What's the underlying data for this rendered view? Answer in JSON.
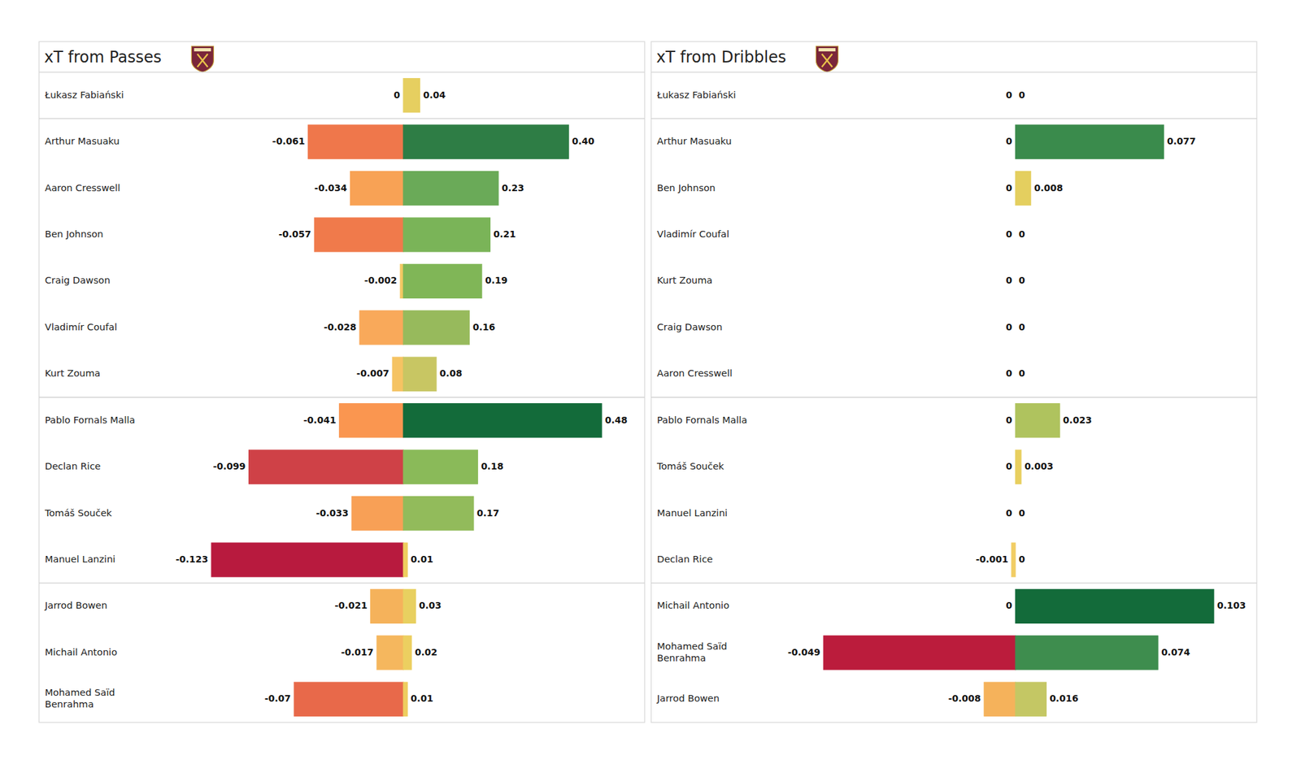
{
  "chart_data": [
    {
      "type": "bar",
      "orientation": "horizontal",
      "title": "xT from Passes",
      "data_labels": true,
      "categories": [
        "Łukasz Fabiański",
        "Arthur Masuaku",
        "Aaron Cresswell",
        "Ben Johnson",
        "Craig Dawson",
        "Vladimír Coufal",
        "Kurt Zouma",
        "Pablo Fornals Malla",
        "Declan Rice",
        "Tomáš Souček",
        "Manuel Lanzini",
        "Jarrod Bowen",
        "Michail Antonio",
        "Mohamed Saïd Benrahma"
      ],
      "groups": [
        1,
        6,
        4,
        3
      ],
      "xlim": [
        -0.123,
        0.48
      ],
      "series": [
        {
          "values": [
            0,
            -0.061,
            -0.034,
            -0.057,
            -0.002,
            -0.028,
            -0.007,
            -0.041,
            -0.099,
            -0.033,
            -0.123,
            -0.021,
            -0.017,
            -0.07
          ],
          "value_labels": [
            "0",
            "-0.061",
            "-0.034",
            "-0.057",
            "-0.002",
            "-0.028",
            "-0.007",
            "-0.041",
            "-0.099",
            "-0.033",
            "-0.123",
            "-0.021",
            "-0.017",
            "-0.07"
          ],
          "colors": [
            "#e8d060",
            "#ef774b",
            "#f8a255",
            "#f07a4b",
            "#f3c862",
            "#f9a95a",
            "#f5c363",
            "#fa9650",
            "#cf4147",
            "#f8a056",
            "#b81a3e",
            "#f5b25b",
            "#f5b75e",
            "#e8694a"
          ]
        },
        {
          "values": [
            0.04,
            0.4,
            0.23,
            0.21,
            0.19,
            0.16,
            0.08,
            0.48,
            0.18,
            0.17,
            0.01,
            0.03,
            0.02,
            0.01
          ],
          "value_labels": [
            "0.04",
            "0.40",
            "0.23",
            "0.21",
            "0.19",
            "0.16",
            "0.08",
            "0.48",
            "0.18",
            "0.17",
            "0.01",
            "0.03",
            "0.02",
            "0.01"
          ],
          "colors": [
            "#e6cf60",
            "#2e7d45",
            "#6aaa58",
            "#7ab458",
            "#80b657",
            "#97ba5c",
            "#c8c663",
            "#136b3a",
            "#8aba59",
            "#92bb5b",
            "#eecd5f",
            "#e8d060",
            "#eccf60",
            "#eecd5f"
          ]
        }
      ]
    },
    {
      "type": "bar",
      "orientation": "horizontal",
      "title": "xT from Dribbles",
      "data_labels": true,
      "categories": [
        "Łukasz Fabiański",
        "Arthur Masuaku",
        "Ben Johnson",
        "Vladimír Coufal",
        "Kurt Zouma",
        "Craig Dawson",
        "Aaron Cresswell",
        "Pablo Fornals Malla",
        "Tomáš Souček",
        "Manuel Lanzini",
        "Declan Rice",
        "Michail Antonio",
        "Mohamed Saïd Benrahma",
        "Jarrod Bowen"
      ],
      "groups": [
        1,
        6,
        4,
        3
      ],
      "xlim": [
        -0.049,
        0.103
      ],
      "series": [
        {
          "values": [
            0,
            0,
            0,
            0,
            0,
            0,
            0,
            0,
            0,
            0,
            -0.001,
            0,
            -0.049,
            -0.008
          ],
          "value_labels": [
            "0",
            "0",
            "0",
            "0",
            "0",
            "0",
            "0",
            "0",
            "0",
            "0",
            "-0.001",
            "0",
            "-0.049",
            "-0.008"
          ],
          "colors": [
            "#e8d060",
            "#e8d060",
            "#e8d060",
            "#e8d060",
            "#e8d060",
            "#e8d060",
            "#e8d060",
            "#e8d060",
            "#e8d060",
            "#e8d060",
            "#f1cd64",
            "#e8d060",
            "#bb1c3c",
            "#f5b25b"
          ]
        },
        {
          "values": [
            0,
            0.077,
            0.008,
            0,
            0,
            0,
            0,
            0.023,
            0.003,
            0,
            0,
            0.103,
            0.074,
            0.016
          ],
          "value_labels": [
            "0",
            "0.077",
            "0.008",
            "0",
            "0",
            "0",
            "0",
            "0.023",
            "0.003",
            "0",
            "0",
            "0.103",
            "0.074",
            "0.016"
          ],
          "colors": [
            "#e8d060",
            "#3a8b4c",
            "#e4cf5f",
            "#e8d060",
            "#e8d060",
            "#e8d060",
            "#e8d060",
            "#afc35e",
            "#e8cf5f",
            "#e8d060",
            "#e8d060",
            "#136b3a",
            "#3e8d4e",
            "#c4c764"
          ]
        }
      ]
    }
  ]
}
